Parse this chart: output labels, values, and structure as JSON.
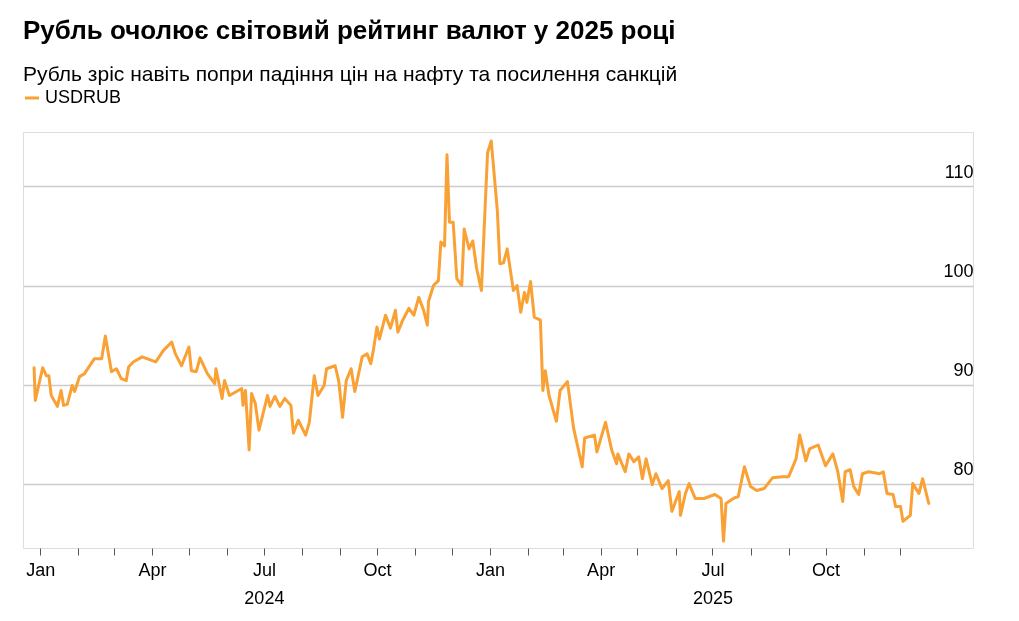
{
  "chart_data": {
    "type": "line",
    "title": "Рубль очолює світовий рейтинг валют у 2025 році",
    "subtitle": "Рубль зріс навіть попри падіння цін на нафту та посилення санкцій",
    "x": [
      "2023-12-27",
      "2023-12-28",
      "2024-01-03",
      "2024-01-06",
      "2024-01-08",
      "2024-01-10",
      "2024-01-15",
      "2024-01-18",
      "2024-01-20",
      "2024-01-23",
      "2024-01-27",
      "2024-01-29",
      "2024-02-02",
      "2024-02-06",
      "2024-02-14",
      "2024-02-20",
      "2024-02-23",
      "2024-02-28",
      "2024-03-03",
      "2024-03-07",
      "2024-03-11",
      "2024-03-13",
      "2024-03-17",
      "2024-03-24",
      "2024-04-04",
      "2024-04-10",
      "2024-04-17",
      "2024-04-20",
      "2024-04-25",
      "2024-05-01",
      "2024-05-03",
      "2024-05-07",
      "2024-05-10",
      "2024-05-16",
      "2024-05-22",
      "2024-05-23",
      "2024-05-28",
      "2024-05-30",
      "2024-06-03",
      "2024-06-13",
      "2024-06-14",
      "2024-06-16",
      "2024-06-19",
      "2024-06-21",
      "2024-06-24",
      "2024-06-27",
      "2024-07-04",
      "2024-07-06",
      "2024-07-10",
      "2024-07-14",
      "2024-07-18",
      "2024-07-23",
      "2024-07-25",
      "2024-07-29",
      "2024-08-04",
      "2024-08-07",
      "2024-08-11",
      "2024-08-14",
      "2024-08-19",
      "2024-08-21",
      "2024-08-28",
      "2024-08-31",
      "2024-09-03",
      "2024-09-06",
      "2024-09-10",
      "2024-09-13",
      "2024-09-19",
      "2024-09-23",
      "2024-09-26",
      "2024-09-28",
      "2024-10-01",
      "2024-10-03",
      "2024-10-08",
      "2024-10-12",
      "2024-10-16",
      "2024-10-18",
      "2024-10-22",
      "2024-10-27",
      "2024-10-31",
      "2024-11-04",
      "2024-11-08",
      "2024-11-11",
      "2024-11-12",
      "2024-11-16",
      "2024-11-20",
      "2024-11-22",
      "2024-11-25",
      "2024-11-27",
      "2024-11-29",
      "2024-12-02",
      "2024-12-05",
      "2024-12-09",
      "2024-12-11",
      "2024-12-15",
      "2024-12-18",
      "2024-12-21",
      "2024-12-25",
      "2024-12-30",
      "2025-01-02",
      "2025-01-07",
      "2025-01-09",
      "2025-01-12",
      "2025-01-15",
      "2025-01-20",
      "2025-01-23",
      "2025-01-26",
      "2025-01-29",
      "2025-01-31",
      "2025-02-03",
      "2025-02-06",
      "2025-02-11",
      "2025-02-13",
      "2025-02-15",
      "2025-02-18",
      "2025-02-24",
      "2025-02-27",
      "2025-03-05",
      "2025-03-10",
      "2025-03-17",
      "2025-03-19",
      "2025-03-27",
      "2025-03-29",
      "2025-04-05",
      "2025-04-10",
      "2025-04-14",
      "2025-04-15",
      "2025-04-21",
      "2025-04-24",
      "2025-04-28",
      "2025-05-02",
      "2025-05-05",
      "2025-05-08",
      "2025-05-13",
      "2025-05-16",
      "2025-05-21",
      "2025-05-26",
      "2025-05-29",
      "2025-06-04",
      "2025-06-05",
      "2025-06-09",
      "2025-06-12",
      "2025-06-17",
      "2025-06-24",
      "2025-07-03",
      "2025-07-08",
      "2025-07-10",
      "2025-07-12",
      "2025-07-18",
      "2025-07-22",
      "2025-07-27",
      "2025-08-01",
      "2025-08-06",
      "2025-08-12",
      "2025-08-19",
      "2025-08-27",
      "2025-09-01",
      "2025-09-07",
      "2025-09-10",
      "2025-09-15",
      "2025-09-18",
      "2025-09-25",
      "2025-10-01",
      "2025-10-07",
      "2025-10-11",
      "2025-10-15",
      "2025-10-17",
      "2025-10-21",
      "2025-10-24",
      "2025-10-28",
      "2025-10-31",
      "2025-11-05",
      "2025-11-14",
      "2025-11-17",
      "2025-11-20",
      "2025-11-25",
      "2025-11-27",
      "2025-12-01",
      "2025-12-03",
      "2025-12-09",
      "2025-12-11",
      "2025-12-16",
      "2025-12-19",
      "2025-12-24"
    ],
    "series": [
      {
        "name": "USDRUB",
        "color": "#f9a134",
        "values": [
          91.7,
          88.4,
          91.7,
          90.9,
          90.9,
          88.9,
          87.8,
          89.4,
          87.9,
          88.0,
          89.9,
          89.3,
          90.8,
          91.1,
          92.6,
          92.6,
          94.9,
          91.3,
          91.6,
          90.6,
          90.4,
          91.8,
          92.3,
          92.8,
          92.3,
          93.4,
          94.3,
          93.1,
          91.9,
          93.8,
          91.4,
          91.3,
          92.7,
          91.1,
          90.1,
          91.6,
          88.6,
          90.4,
          88.9,
          89.6,
          87.9,
          89.4,
          83.4,
          89.1,
          88.1,
          85.4,
          88.9,
          87.8,
          88.8,
          87.8,
          88.6,
          87.9,
          85.1,
          86.4,
          84.9,
          86.2,
          90.9,
          88.9,
          89.9,
          91.6,
          91.9,
          90.3,
          86.7,
          90.4,
          91.6,
          89.3,
          92.8,
          93.1,
          92.1,
          93.4,
          95.8,
          94.6,
          97.0,
          95.7,
          97.5,
          95.3,
          96.5,
          97.7,
          97.0,
          98.8,
          97.5,
          96.0,
          98.4,
          100.0,
          100.5,
          104.4,
          104.0,
          113.2,
          106.4,
          106.4,
          100.7,
          100.0,
          105.7,
          103.7,
          104.5,
          101.8,
          99.5,
          113.4,
          114.6,
          107.5,
          102.2,
          102.3,
          103.7,
          99.5,
          100.0,
          97.3,
          99.3,
          98.3,
          100.4,
          96.8,
          96.5,
          89.4,
          91.4,
          88.9,
          86.3,
          89.4,
          90.3,
          85.6,
          81.7,
          84.6,
          84.9,
          83.2,
          86.2,
          83.4,
          82.0,
          83.0,
          81.2,
          83.0,
          82.2,
          82.7,
          80.5,
          82.5,
          79.9,
          81.0,
          79.5,
          80.3,
          77.2,
          79.2,
          76.8,
          79.0,
          80.0,
          78.5,
          78.5,
          78.9,
          78.5,
          74.2,
          78.0,
          78.5,
          78.7,
          81.7,
          79.7,
          79.3,
          79.5,
          80.6,
          80.7,
          80.7,
          82.5,
          84.9,
          82.3,
          83.5,
          83.9,
          81.8,
          83.0,
          81.2,
          78.2,
          81.2,
          81.4,
          79.7,
          78.9,
          81.0,
          81.2,
          81.0,
          81.2,
          79.0,
          78.9,
          77.7,
          77.7,
          76.2,
          76.8,
          80.0,
          79.0,
          80.5,
          78.0
        ]
      }
    ],
    "xlim": [
      "2023-12-18",
      "2026-01-29"
    ],
    "xticks": [
      {
        "value": "2024-01-01",
        "label": "Jan"
      },
      {
        "value": "2024-02-01",
        "label": null
      },
      {
        "value": "2024-03-01",
        "label": null
      },
      {
        "value": "2024-04-01",
        "label": "Apr"
      },
      {
        "value": "2024-05-01",
        "label": null
      },
      {
        "value": "2024-06-01",
        "label": null
      },
      {
        "value": "2024-07-01",
        "label": "Jul\n2024"
      },
      {
        "value": "2024-08-01",
        "label": null
      },
      {
        "value": "2024-09-01",
        "label": null
      },
      {
        "value": "2024-10-01",
        "label": "Oct"
      },
      {
        "value": "2024-11-01",
        "label": null
      },
      {
        "value": "2024-12-01",
        "label": null
      },
      {
        "value": "2025-01-01",
        "label": "Jan"
      },
      {
        "value": "2025-02-01",
        "label": null
      },
      {
        "value": "2025-03-01",
        "label": null
      },
      {
        "value": "2025-04-01",
        "label": "Apr"
      },
      {
        "value": "2025-05-01",
        "label": null
      },
      {
        "value": "2025-06-01",
        "label": null
      },
      {
        "value": "2025-07-01",
        "label": "Jul\n2025"
      },
      {
        "value": "2025-08-01",
        "label": null
      },
      {
        "value": "2025-09-01",
        "label": null
      },
      {
        "value": "2025-10-01",
        "label": "Oct"
      },
      {
        "value": "2025-11-01",
        "label": null
      },
      {
        "value": "2025-12-01",
        "label": null
      }
    ],
    "ylim": [
      73.5,
      115.5
    ],
    "yticks": [
      80,
      90,
      100,
      110
    ],
    "grid": "y",
    "legend": "top left"
  }
}
